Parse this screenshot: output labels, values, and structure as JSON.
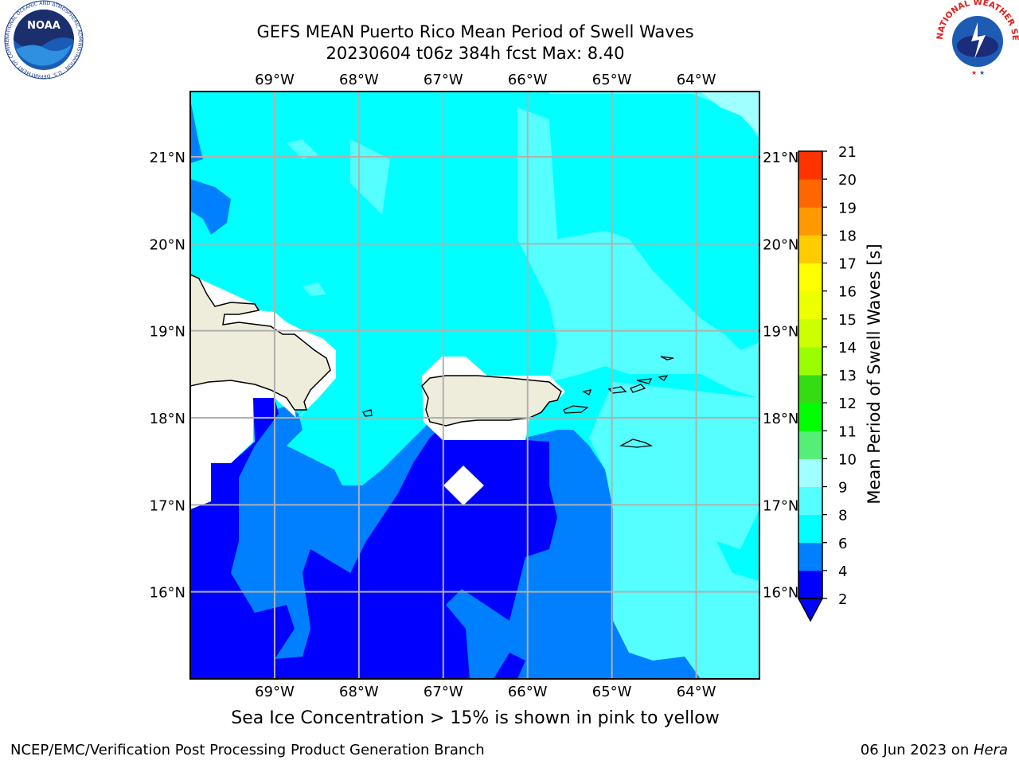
{
  "title": {
    "line1": "GEFS MEAN Puerto Rico Mean Period of Swell Waves",
    "line2": "20230604 t06z 384h fcst   Max: 8.40"
  },
  "map": {
    "lon_ticks": [
      "69°W",
      "68°W",
      "67°W",
      "66°W",
      "65°W",
      "64°W"
    ],
    "lat_ticks": [
      "21°N",
      "20°N",
      "19°N",
      "18°N",
      "17°N",
      "16°N"
    ],
    "extent": {
      "lon_min": -70.0,
      "lon_max": -63.25,
      "lat_min": 15.0,
      "lat_max": 21.75
    },
    "grid": true,
    "land_color": "#eeeddc"
  },
  "colorbar": {
    "label": "Mean Period of Swell Waves [s]",
    "levels": [
      "2",
      "4",
      "6",
      "8",
      "9",
      "10",
      "11",
      "12",
      "13",
      "14",
      "15",
      "16",
      "17",
      "18",
      "19",
      "20",
      "21"
    ],
    "colors": [
      "#0000ff",
      "#0080ff",
      "#00ffff",
      "#55ffff",
      "#a0ffff",
      "#55ee77",
      "#00ff00",
      "#33dd11",
      "#99ff00",
      "#ccff00",
      "#eeff00",
      "#ffff00",
      "#ffcc00",
      "#ff9900",
      "#ff6600",
      "#ff3300",
      "#ff0000"
    ],
    "extend": "min"
  },
  "field_colors": {
    "c2_4": "#0000ff",
    "c4_6": "#0080ff",
    "c6_8": "#00ffff",
    "c8_9": "#55ffff",
    "c9_10": "#a0ffff"
  },
  "note": "Sea Ice Concentration > 15% is shown in pink to yellow",
  "footer": {
    "left": "NCEP/EMC/Verification Post Processing Product Generation Branch",
    "right_prefix": "06 Jun 2023 on ",
    "right_host": "Hera"
  },
  "logos": {
    "noaa": "NOAA",
    "noaa_ring": "NATIONAL OCEANIC AND ATMOSPHERIC ADMINISTRATION · U.S. DEPARTMENT OF COMMERCE",
    "nws_ring": "NATIONAL WEATHER SERVICE"
  }
}
